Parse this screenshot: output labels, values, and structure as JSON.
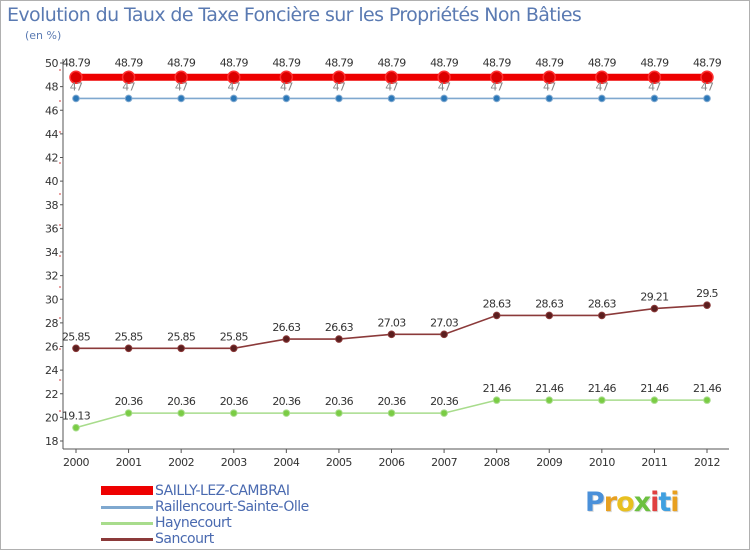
{
  "chart_data": {
    "type": "line",
    "title": "Evolution du Taux de Taxe Foncière sur les Propriétés Non Bâties",
    "subtitle": "(en %)",
    "xlabel": "",
    "ylabel": "",
    "x": [
      "2000",
      "2001",
      "2002",
      "2003",
      "2004",
      "2005",
      "2006",
      "2007",
      "2008",
      "2009",
      "2010",
      "2011",
      "2012"
    ],
    "ylim": [
      18,
      50
    ],
    "yticks": [
      18,
      20,
      22,
      24,
      26,
      28,
      30,
      32,
      34,
      36,
      38,
      40,
      42,
      44,
      46,
      48,
      50
    ],
    "grid": false,
    "legend": "bottom-left",
    "series": [
      {
        "name": "SAILLY-LEZ-CAMBRAI",
        "color": "#ee0000",
        "values": [
          48.79,
          48.79,
          48.79,
          48.79,
          48.79,
          48.79,
          48.79,
          48.79,
          48.79,
          48.79,
          48.79,
          48.79,
          48.79
        ],
        "labels": [
          "48.79",
          "48.79",
          "48.79",
          "48.79",
          "48.79",
          "48.79",
          "48.79",
          "48.79",
          "48.79",
          "48.79",
          "48.79",
          "48.79",
          "48.79"
        ]
      },
      {
        "name": "Raillencourt-Sainte-Olle",
        "color": "#7fa8cf",
        "values": [
          47,
          47,
          47,
          47,
          47,
          47,
          47,
          47,
          47,
          47,
          47,
          47,
          47
        ],
        "labels": [
          "47",
          "47",
          "47",
          "47",
          "47",
          "47",
          "47",
          "47",
          "47",
          "47",
          "47",
          "47",
          "47"
        ]
      },
      {
        "name": "Haynecourt",
        "color": "#a8dc8c",
        "values": [
          19.13,
          20.36,
          20.36,
          20.36,
          20.36,
          20.36,
          20.36,
          20.36,
          21.46,
          21.46,
          21.46,
          21.46,
          21.46
        ],
        "labels": [
          "19.13",
          "20.36",
          "20.36",
          "20.36",
          "20.36",
          "20.36",
          "20.36",
          "20.36",
          "21.46",
          "21.46",
          "21.46",
          "21.46",
          "21.46"
        ]
      },
      {
        "name": "Sancourt",
        "color": "#8b3a3a",
        "values": [
          25.85,
          25.85,
          25.85,
          25.85,
          26.63,
          26.63,
          27.03,
          27.03,
          28.63,
          28.63,
          28.63,
          29.21,
          29.5
        ],
        "labels": [
          "25.85",
          "25.85",
          "25.85",
          "25.85",
          "26.63",
          "26.63",
          "27.03",
          "27.03",
          "28.63",
          "28.63",
          "28.63",
          "29.21",
          "29.5"
        ]
      }
    ]
  },
  "brand": {
    "letters": [
      "P",
      "r",
      "o",
      "x",
      "i",
      "t",
      "i"
    ],
    "colors": [
      "#4a90d9",
      "#e8a020",
      "#e8c020",
      "#6cc040",
      "#e04040",
      "#40a0e0",
      "#e8a020"
    ]
  }
}
